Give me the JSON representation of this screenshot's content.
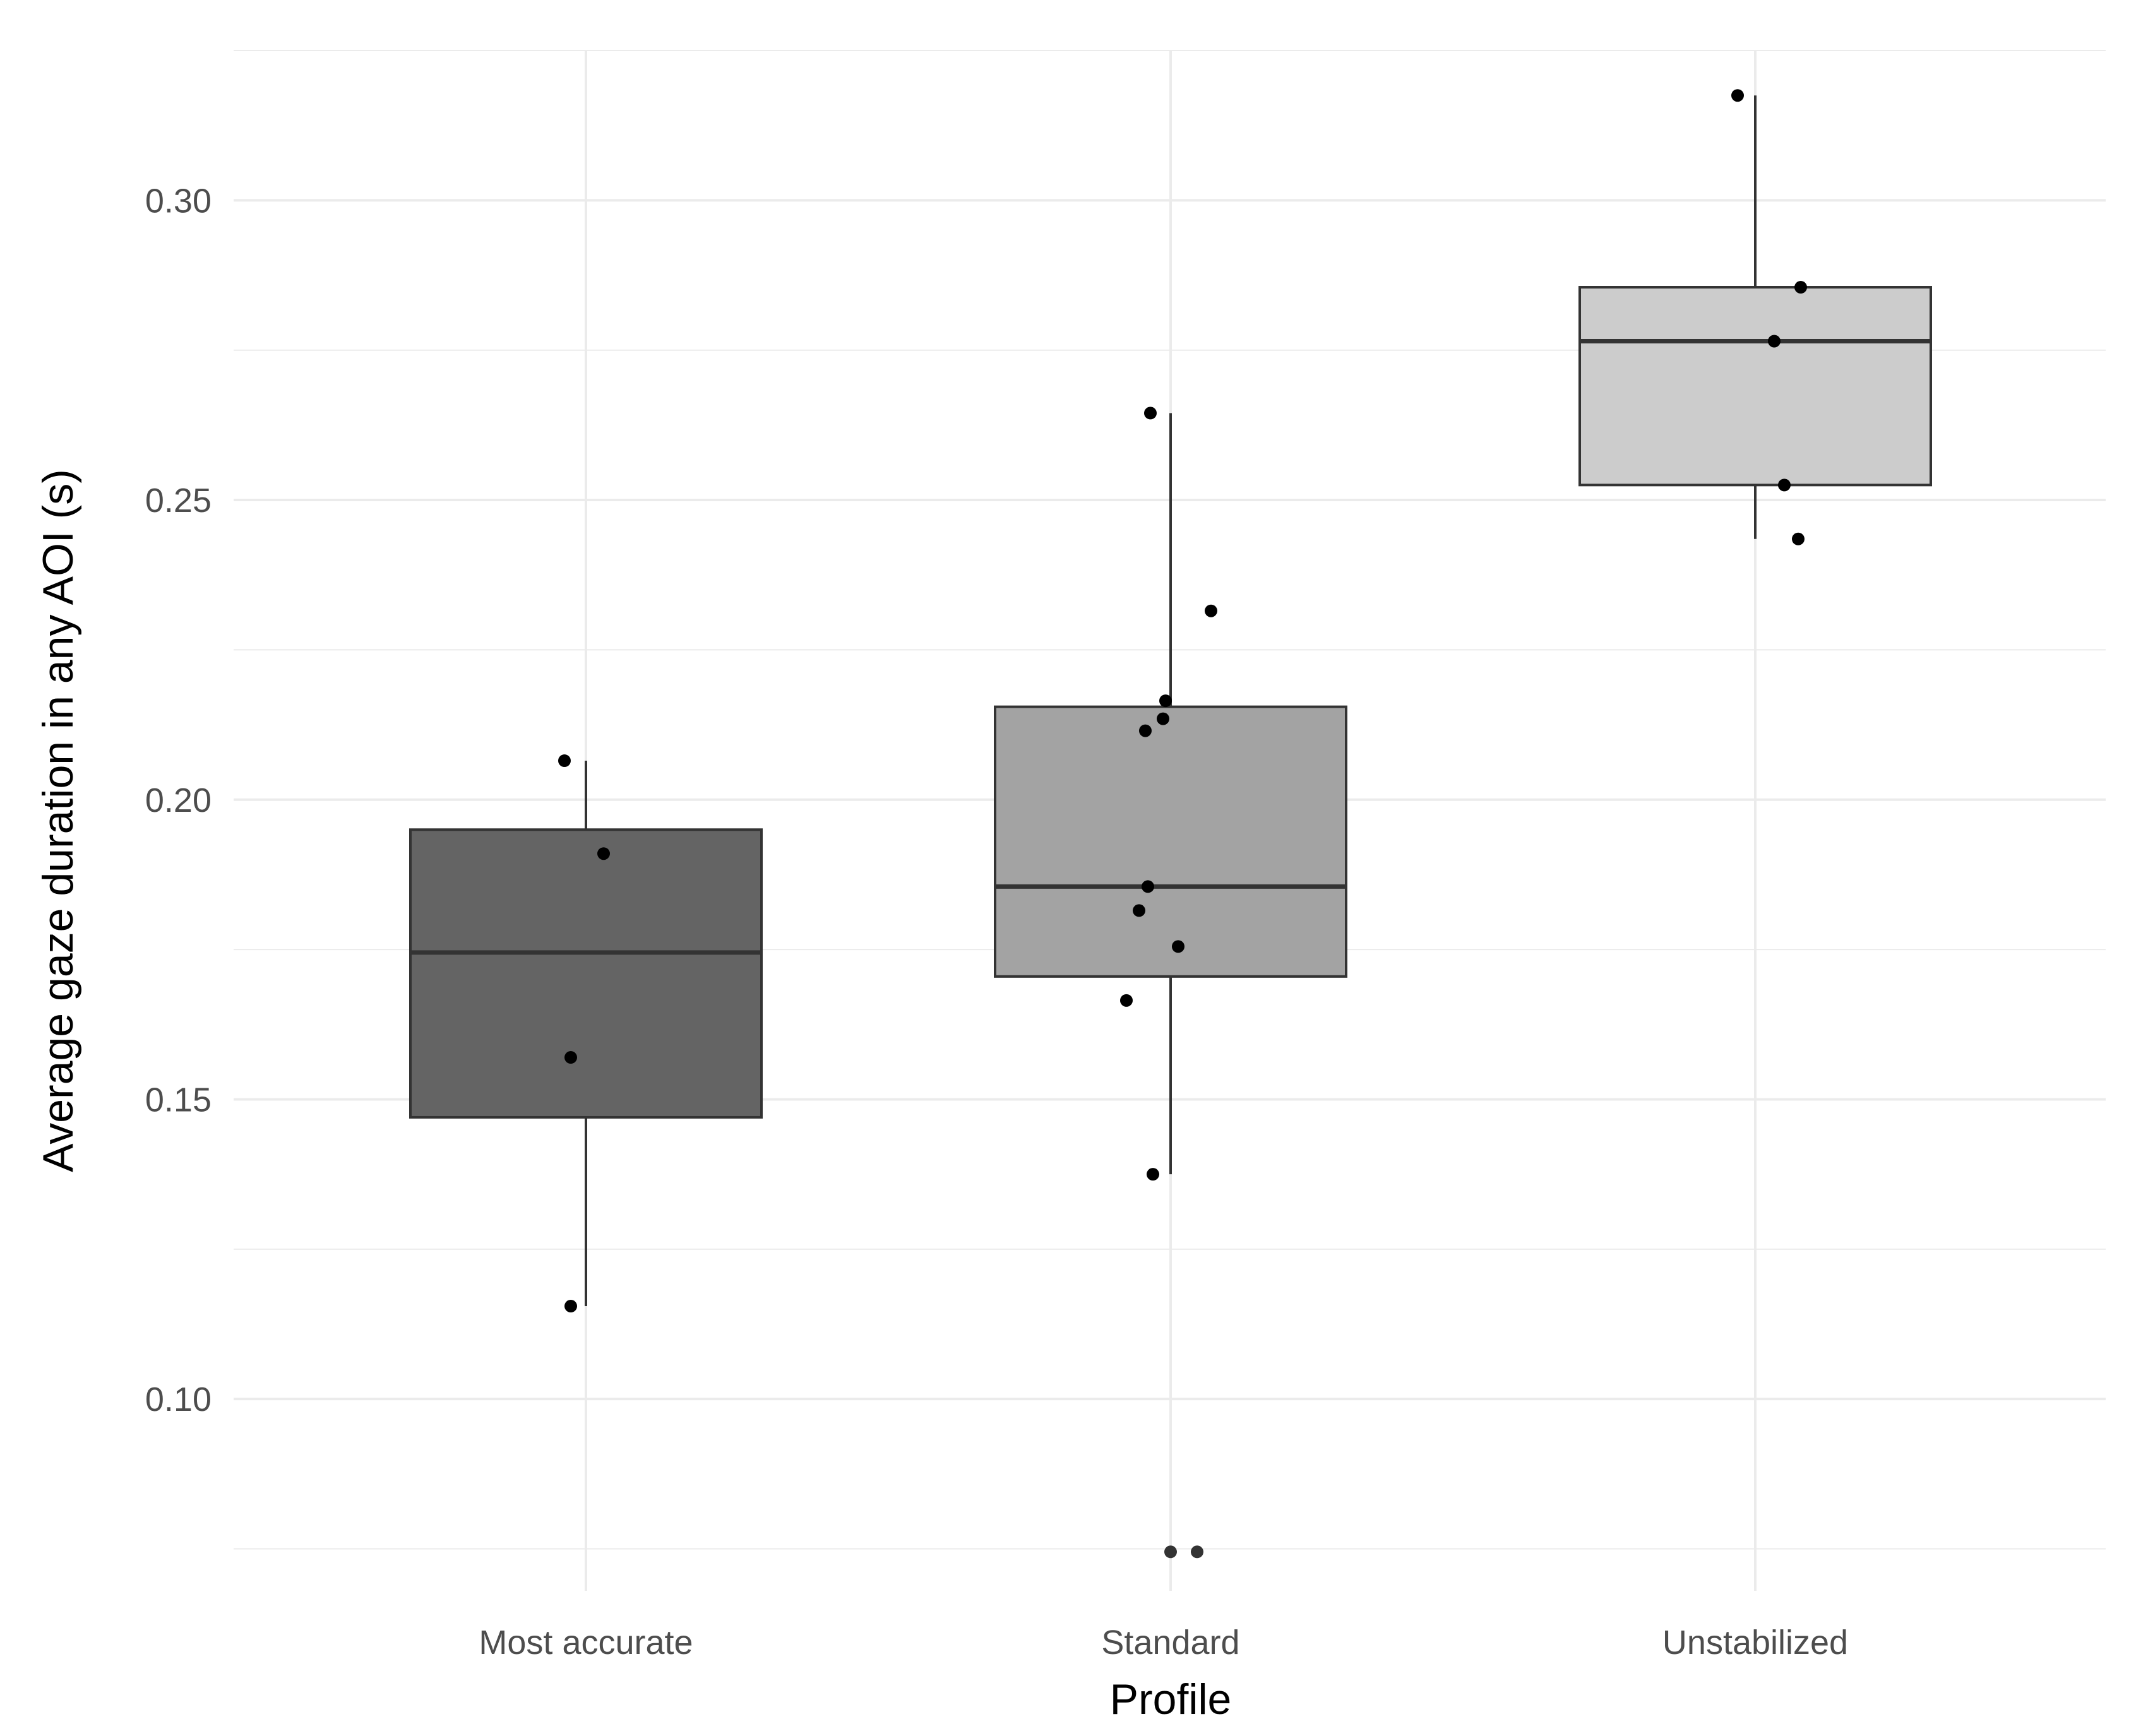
{
  "chart_data": {
    "type": "boxplot",
    "xlabel": "Profile",
    "ylabel": "Average gaze duration in any AOI (s)",
    "ylim": [
      0.068,
      0.325
    ],
    "yticks": [
      0.1,
      0.15,
      0.2,
      0.25,
      0.3
    ],
    "ytick_labels": [
      "0.10",
      "0.15",
      "0.20",
      "0.25",
      "0.30"
    ],
    "grid": true,
    "legend": "none",
    "categories": [
      "Most accurate",
      "Standard",
      "Unstabilized"
    ],
    "series": [
      {
        "category": "Most accurate",
        "fill": "#646464",
        "q1": 0.147,
        "median": 0.1745,
        "q3": 0.195,
        "whisker_low": 0.1155,
        "whisker_high": 0.2065,
        "points": [
          0.2065,
          0.191,
          0.157,
          0.1155
        ],
        "outliers": []
      },
      {
        "category": "Standard",
        "fill": "#a3a3a3",
        "q1": 0.1705,
        "median": 0.1855,
        "q3": 0.2155,
        "whisker_low": 0.1375,
        "whisker_high": 0.2645,
        "points": [
          0.2645,
          0.2315,
          0.2165,
          0.2135,
          0.2115,
          0.1855,
          0.1815,
          0.1755,
          0.1665,
          0.1375
        ],
        "outliers": [
          0.0745,
          0.0745
        ]
      },
      {
        "category": "Unstabilized",
        "fill": "#cccccc",
        "q1": 0.2525,
        "median": 0.2765,
        "q3": 0.2855,
        "whisker_low": 0.2435,
        "whisker_high": 0.3175,
        "points": [
          0.3175,
          0.2855,
          0.2765,
          0.2525,
          0.2435
        ],
        "outliers": []
      }
    ],
    "colors": {
      "box_outline": "#333333",
      "point": "#000000",
      "grid": "#ebebeb",
      "tick_label": "#4d4d4d"
    }
  }
}
